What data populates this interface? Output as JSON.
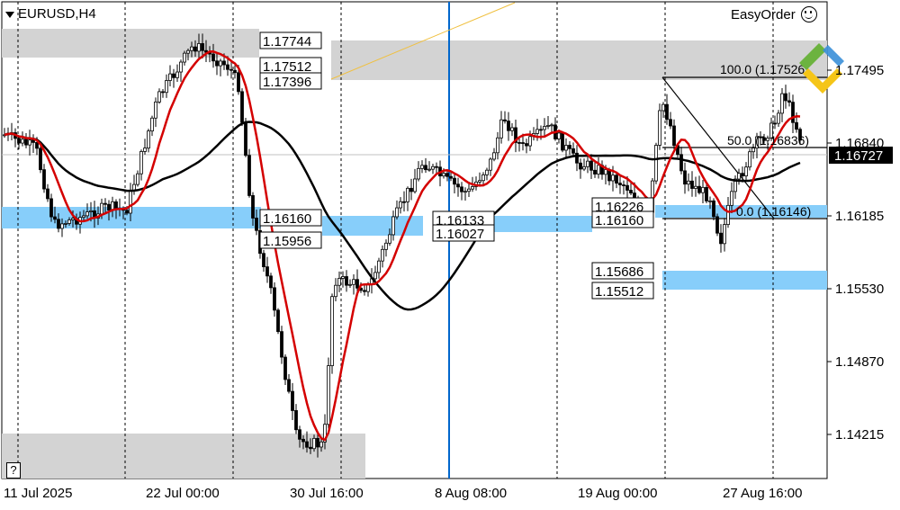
{
  "header": {
    "symbol_label": "EURUSD,H4",
    "easyorder_label": "EasyOrder",
    "help_label": "?"
  },
  "price_axis": {
    "labels": [
      "1.17495",
      "1.16840",
      "1.16185",
      "1.15530",
      "1.14870",
      "1.14215"
    ],
    "current_price": "1.16727"
  },
  "time_axis": {
    "labels": [
      "11 Jul 2025",
      "22 Jul 00:00",
      "30 Jul 16:00",
      "8 Aug 08:00",
      "19 Aug 00:00",
      "27 Aug 16:00"
    ]
  },
  "level_labels": [
    "1.17744",
    "1.17512",
    "1.17396",
    "1.16160",
    "1.15956",
    "1.16133",
    "1.16027",
    "1.16226",
    "1.16160",
    "1.15686",
    "1.15512"
  ],
  "fib_labels": [
    "100.0 (1.17526)",
    "50.0 (1.16836)",
    "0.0 (1.16146)"
  ],
  "colors": {
    "ma_fast": "#d40000",
    "ma_slow": "#000000",
    "zone_gray": "#d3d3d3",
    "zone_blue": "#87cefa",
    "marker_line": "#0066cc",
    "trend_line": "#f0c040",
    "logo_green": "#6cb33f",
    "logo_blue": "#3a8fd8",
    "logo_yellow": "#f5c518"
  },
  "icons": [
    "dropdown-triangle-icon",
    "smiley-icon",
    "question-icon",
    "logo-icon"
  ]
}
